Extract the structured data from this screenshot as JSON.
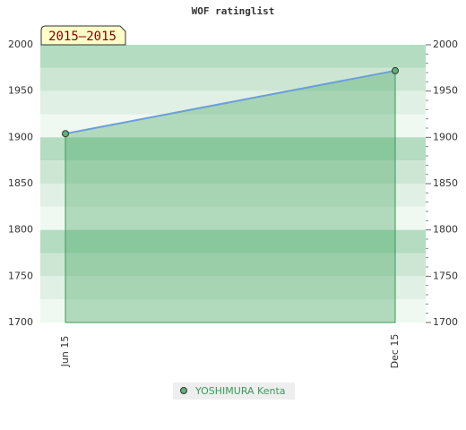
{
  "chart_data": {
    "type": "area",
    "title": "WOF ratinglist",
    "annotation": "2015–2015",
    "categories": [
      "Jun 15",
      "Dec 15"
    ],
    "series": [
      {
        "name": "YOSHIMURA Kenta",
        "color": "#3a9a5a",
        "values": [
          1904,
          1972
        ]
      }
    ],
    "ylim": [
      1700,
      2000
    ],
    "yticks": [
      1700,
      1750,
      1800,
      1850,
      1900,
      1950,
      2000
    ],
    "y2lim": [
      1700,
      2000
    ],
    "y2ticks": [
      1700,
      1750,
      1800,
      1850,
      1900,
      1950,
      2000
    ]
  }
}
